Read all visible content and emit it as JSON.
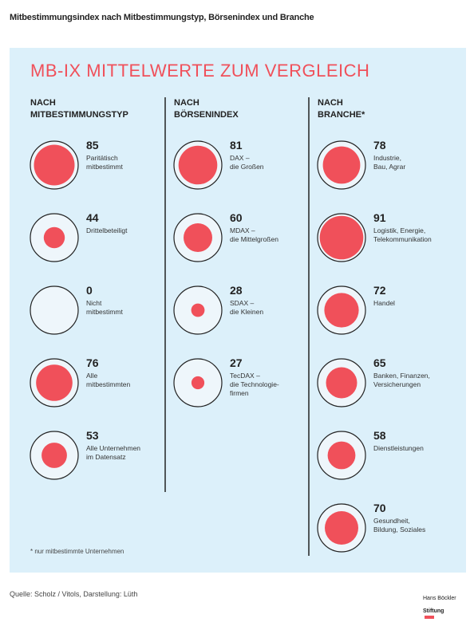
{
  "header": {
    "title": "Mitbestimmungsindex nach Mitbestimmungstyp, Börsenindex und Branche"
  },
  "title": "MB-IX MITTELWERTE ZUM VERGLEICH",
  "chart_data": [
    {
      "type": "circle",
      "title": "NACH\nMITBESTIMMUNGSTYP",
      "color": "#f0505a",
      "categories": [
        "Paritätisch\nmitbestimmt",
        "Drittelbeteiligt",
        "Nicht\nmitbestimmt",
        "Alle\nmitbestimmten",
        "Alle Unternehmen\nim Datensatz"
      ],
      "values": [
        85,
        44,
        0,
        76,
        53
      ]
    },
    {
      "type": "circle",
      "title": "NACH\nBÖRSENINDEX",
      "color": "#f0505a",
      "categories": [
        "DAX –\ndie Großen",
        "MDAX –\ndie Mittelgroßen",
        "SDAX –\ndie Kleinen",
        "TecDAX –\ndie Technologie-\nfirmen"
      ],
      "values": [
        81,
        60,
        28,
        27
      ]
    },
    {
      "type": "circle",
      "title": "NACH\nBRANCHE*",
      "color": "#f0505a",
      "categories": [
        "Industrie,\nBau, Agrar",
        "Logistik, Energie,\nTelekommunikation",
        "Handel",
        "Banken, Finanzen,\nVersicherungen",
        "Dienstleistungen",
        "Gesundheit,\nBildung, Soziales"
      ],
      "values": [
        78,
        91,
        72,
        65,
        58,
        70
      ]
    }
  ],
  "footnote": "* nur mitbestimmte Unternehmen",
  "source": "Quelle: Scholz / Vitols, Darstellung: Lüth",
  "logo": [
    "Hans Böckler",
    "Stiftung"
  ]
}
